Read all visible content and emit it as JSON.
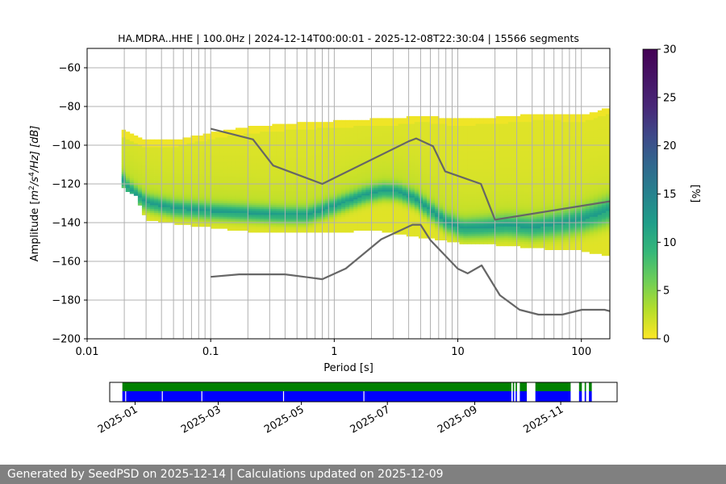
{
  "chart_data": {
    "type": "heatmap",
    "title": "HA.MDRA..HHE | 100.0Hz | 2024-12-14T00:00:01 - 2025-12-08T22:30:04 | 15566 segments",
    "xlabel": "Period [s]",
    "ylabel_parts": {
      "main": "Amplitude [",
      "m": "m",
      "exp2": "2",
      "slash": "/",
      "s": "s",
      "exp4": "4",
      "hz": "/Hz] [dB]"
    },
    "x_scale": "log",
    "xlim": [
      0.01,
      170
    ],
    "ylim": [
      -200,
      -50
    ],
    "x_ticks": [
      {
        "value": 0.01,
        "label": "0.01"
      },
      {
        "value": 0.1,
        "label": "0.1"
      },
      {
        "value": 1,
        "label": "1"
      },
      {
        "value": 10,
        "label": "10"
      },
      {
        "value": 100,
        "label": "100"
      }
    ],
    "y_ticks": [
      {
        "value": -60,
        "label": "−60"
      },
      {
        "value": -80,
        "label": "−80"
      },
      {
        "value": -100,
        "label": "−100"
      },
      {
        "value": -120,
        "label": "−120"
      },
      {
        "value": -140,
        "label": "−140"
      },
      {
        "value": -160,
        "label": "−160"
      },
      {
        "value": -180,
        "label": "−180"
      },
      {
        "value": -200,
        "label": "−200"
      }
    ],
    "period_gridlines": [
      0.02,
      0.03,
      0.04,
      0.05,
      0.06,
      0.07,
      0.08,
      0.09,
      0.1,
      0.2,
      0.3,
      0.4,
      0.5,
      0.6,
      0.7,
      0.8,
      0.9,
      1,
      2,
      3,
      4,
      5,
      6,
      7,
      8,
      9,
      10,
      20,
      30,
      40,
      50,
      60,
      70,
      80,
      90,
      100
    ],
    "amplitude_gridlines": [
      -60,
      -80,
      -100,
      -120,
      -140,
      -160,
      -180
    ],
    "colorbar": {
      "label": "[%]",
      "range": [
        0,
        30
      ],
      "ticks": [
        {
          "value": 0,
          "label": "0"
        },
        {
          "value": 5,
          "label": "5"
        },
        {
          "value": 10,
          "label": "10"
        },
        {
          "value": 15,
          "label": "15"
        },
        {
          "value": 20,
          "label": "20"
        },
        {
          "value": 25,
          "label": "25"
        },
        {
          "value": 30,
          "label": "30"
        }
      ]
    },
    "series": [
      {
        "name": "NHNM",
        "color": "#666666",
        "points": [
          [
            0.1,
            -91.5
          ],
          [
            0.22,
            -97
          ],
          [
            0.32,
            -110.5
          ],
          [
            0.8,
            -120
          ],
          [
            4.0,
            -98
          ],
          [
            4.6,
            -96.5
          ],
          [
            6.3,
            -100.5
          ],
          [
            7.9,
            -113.5
          ],
          [
            15.4,
            -120
          ],
          [
            20,
            -138.5
          ],
          [
            170,
            -129
          ]
        ]
      },
      {
        "name": "NLNM",
        "color": "#666666",
        "points": [
          [
            0.1,
            -168
          ],
          [
            0.17,
            -166.7
          ],
          [
            0.4,
            -166.7
          ],
          [
            0.8,
            -169.2
          ],
          [
            1.24,
            -163.7
          ],
          [
            2.4,
            -148.6
          ],
          [
            4.3,
            -141.1
          ],
          [
            5.0,
            -141.1
          ],
          [
            6.0,
            -149.0
          ],
          [
            10.0,
            -163.8
          ],
          [
            12.0,
            -166.2
          ],
          [
            15.6,
            -162.1
          ],
          [
            21.9,
            -177.5
          ],
          [
            31.6,
            -185.0
          ],
          [
            45.0,
            -187.5
          ],
          [
            70.0,
            -187.5
          ],
          [
            101,
            -185.0
          ],
          [
            154,
            -185.0
          ],
          [
            170,
            -185.7
          ]
        ]
      }
    ],
    "density": {
      "envelope": [
        [
          0.019,
          -91,
          -121
        ],
        [
          0.02,
          -92,
          -122
        ],
        [
          0.025,
          -95,
          -126
        ],
        [
          0.03,
          -97,
          -138
        ],
        [
          0.05,
          -97,
          -140
        ],
        [
          0.1,
          -93,
          -142
        ],
        [
          0.2,
          -90,
          -144
        ],
        [
          0.5,
          -88,
          -145
        ],
        [
          1,
          -87,
          -145
        ],
        [
          2,
          -86,
          -143
        ],
        [
          3,
          -86,
          -145
        ],
        [
          5,
          -84,
          -147
        ],
        [
          10,
          -86,
          -150
        ],
        [
          20,
          -85,
          -151
        ],
        [
          50,
          -83,
          -153
        ],
        [
          100,
          -84,
          -154
        ],
        [
          170,
          -80,
          -157
        ]
      ],
      "mode_ridge": [
        [
          0.019,
          -117
        ],
        [
          0.021,
          -122
        ],
        [
          0.025,
          -126
        ],
        [
          0.03,
          -130
        ],
        [
          0.05,
          -133
        ],
        [
          0.1,
          -134.5
        ],
        [
          0.2,
          -135.5
        ],
        [
          0.4,
          -136.5
        ],
        [
          0.6,
          -136.5
        ],
        [
          0.8,
          -134
        ],
        [
          1.2,
          -130
        ],
        [
          1.8,
          -126
        ],
        [
          2.5,
          -124
        ],
        [
          3.3,
          -124.5
        ],
        [
          4.5,
          -128
        ],
        [
          6,
          -134
        ],
        [
          8,
          -140
        ],
        [
          11,
          -143.5
        ],
        [
          16,
          -143
        ],
        [
          25,
          -142
        ],
        [
          40,
          -143
        ],
        [
          70,
          -141
        ],
        [
          100,
          -139
        ],
        [
          140,
          -136
        ],
        [
          170,
          -134
        ]
      ]
    },
    "availability": {
      "tick_labels": [
        "2025-01",
        "2025-03",
        "2025-05",
        "2025-07",
        "2025-09",
        "2025-11"
      ],
      "range_days": [
        0,
        360
      ],
      "tick_days": [
        18,
        77,
        136,
        197,
        259,
        320
      ],
      "colors": {
        "data": "#0000ff",
        "processed": "#008000",
        "gap": "#ffffff"
      },
      "segments": [
        [
          9,
          285
        ],
        [
          286,
          287
        ],
        [
          288,
          289
        ],
        [
          291,
          296
        ],
        [
          302,
          327
        ],
        [
          333,
          335
        ],
        [
          337,
          338
        ],
        [
          340,
          342
        ]
      ],
      "gaps_in_data": [
        11,
        37,
        65,
        123,
        180,
        289
      ]
    }
  },
  "footer": {
    "text": "Generated by SeedPSD on 2025-12-14 | Calculations updated on 2025-12-09"
  }
}
